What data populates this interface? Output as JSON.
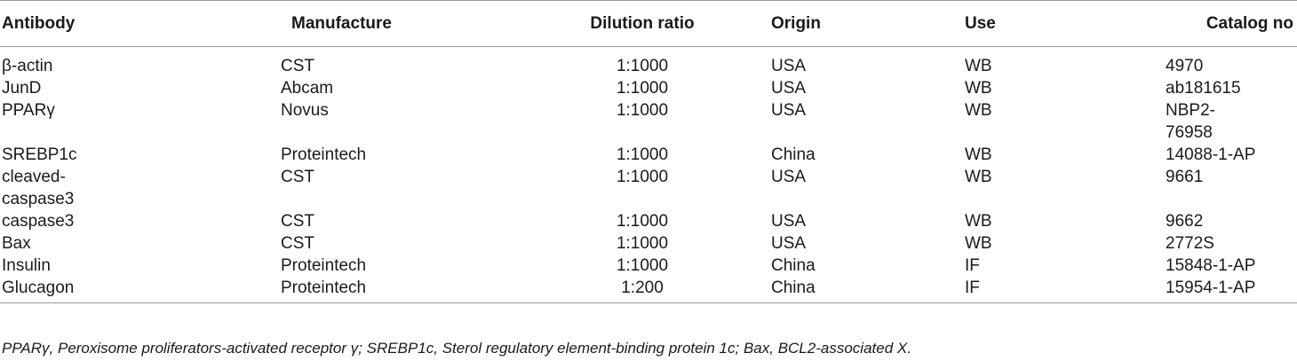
{
  "table": {
    "headers": [
      "Antibody",
      "Manufacture",
      "Dilution ratio",
      "Origin",
      "Use",
      "Catalog no"
    ],
    "rows": [
      [
        "β-actin",
        "CST",
        "1:1000",
        "USA",
        "WB",
        "4970"
      ],
      [
        "JunD",
        "Abcam",
        "1:1000",
        "USA",
        "WB",
        "ab181615"
      ],
      [
        "PPARγ",
        "Novus",
        "1:1000",
        "USA",
        "WB",
        "NBP2-\n76958"
      ],
      [
        "SREBP1c",
        "Proteintech",
        "1:1000",
        "China",
        "WB",
        "14088-1-AP"
      ],
      [
        "cleaved-\ncaspase3",
        "CST",
        "1:1000",
        "USA",
        "WB",
        "9661"
      ],
      [
        "caspase3",
        "CST",
        "1:1000",
        "USA",
        "WB",
        "9662"
      ],
      [
        "Bax",
        "CST",
        "1:1000",
        "USA",
        "WB",
        "2772S"
      ],
      [
        "Insulin",
        "Proteintech",
        "1:1000",
        "China",
        "IF",
        "15848-1-AP"
      ],
      [
        "Glucagon",
        "Proteintech",
        "1:200",
        "China",
        "IF",
        "15954-1-AP"
      ]
    ]
  },
  "footnote": "PPARγ, Peroxisome proliferators-activated receptor γ; SREBP1c, Sterol regulatory element-binding protein 1c; Bax, BCL2-associated X."
}
